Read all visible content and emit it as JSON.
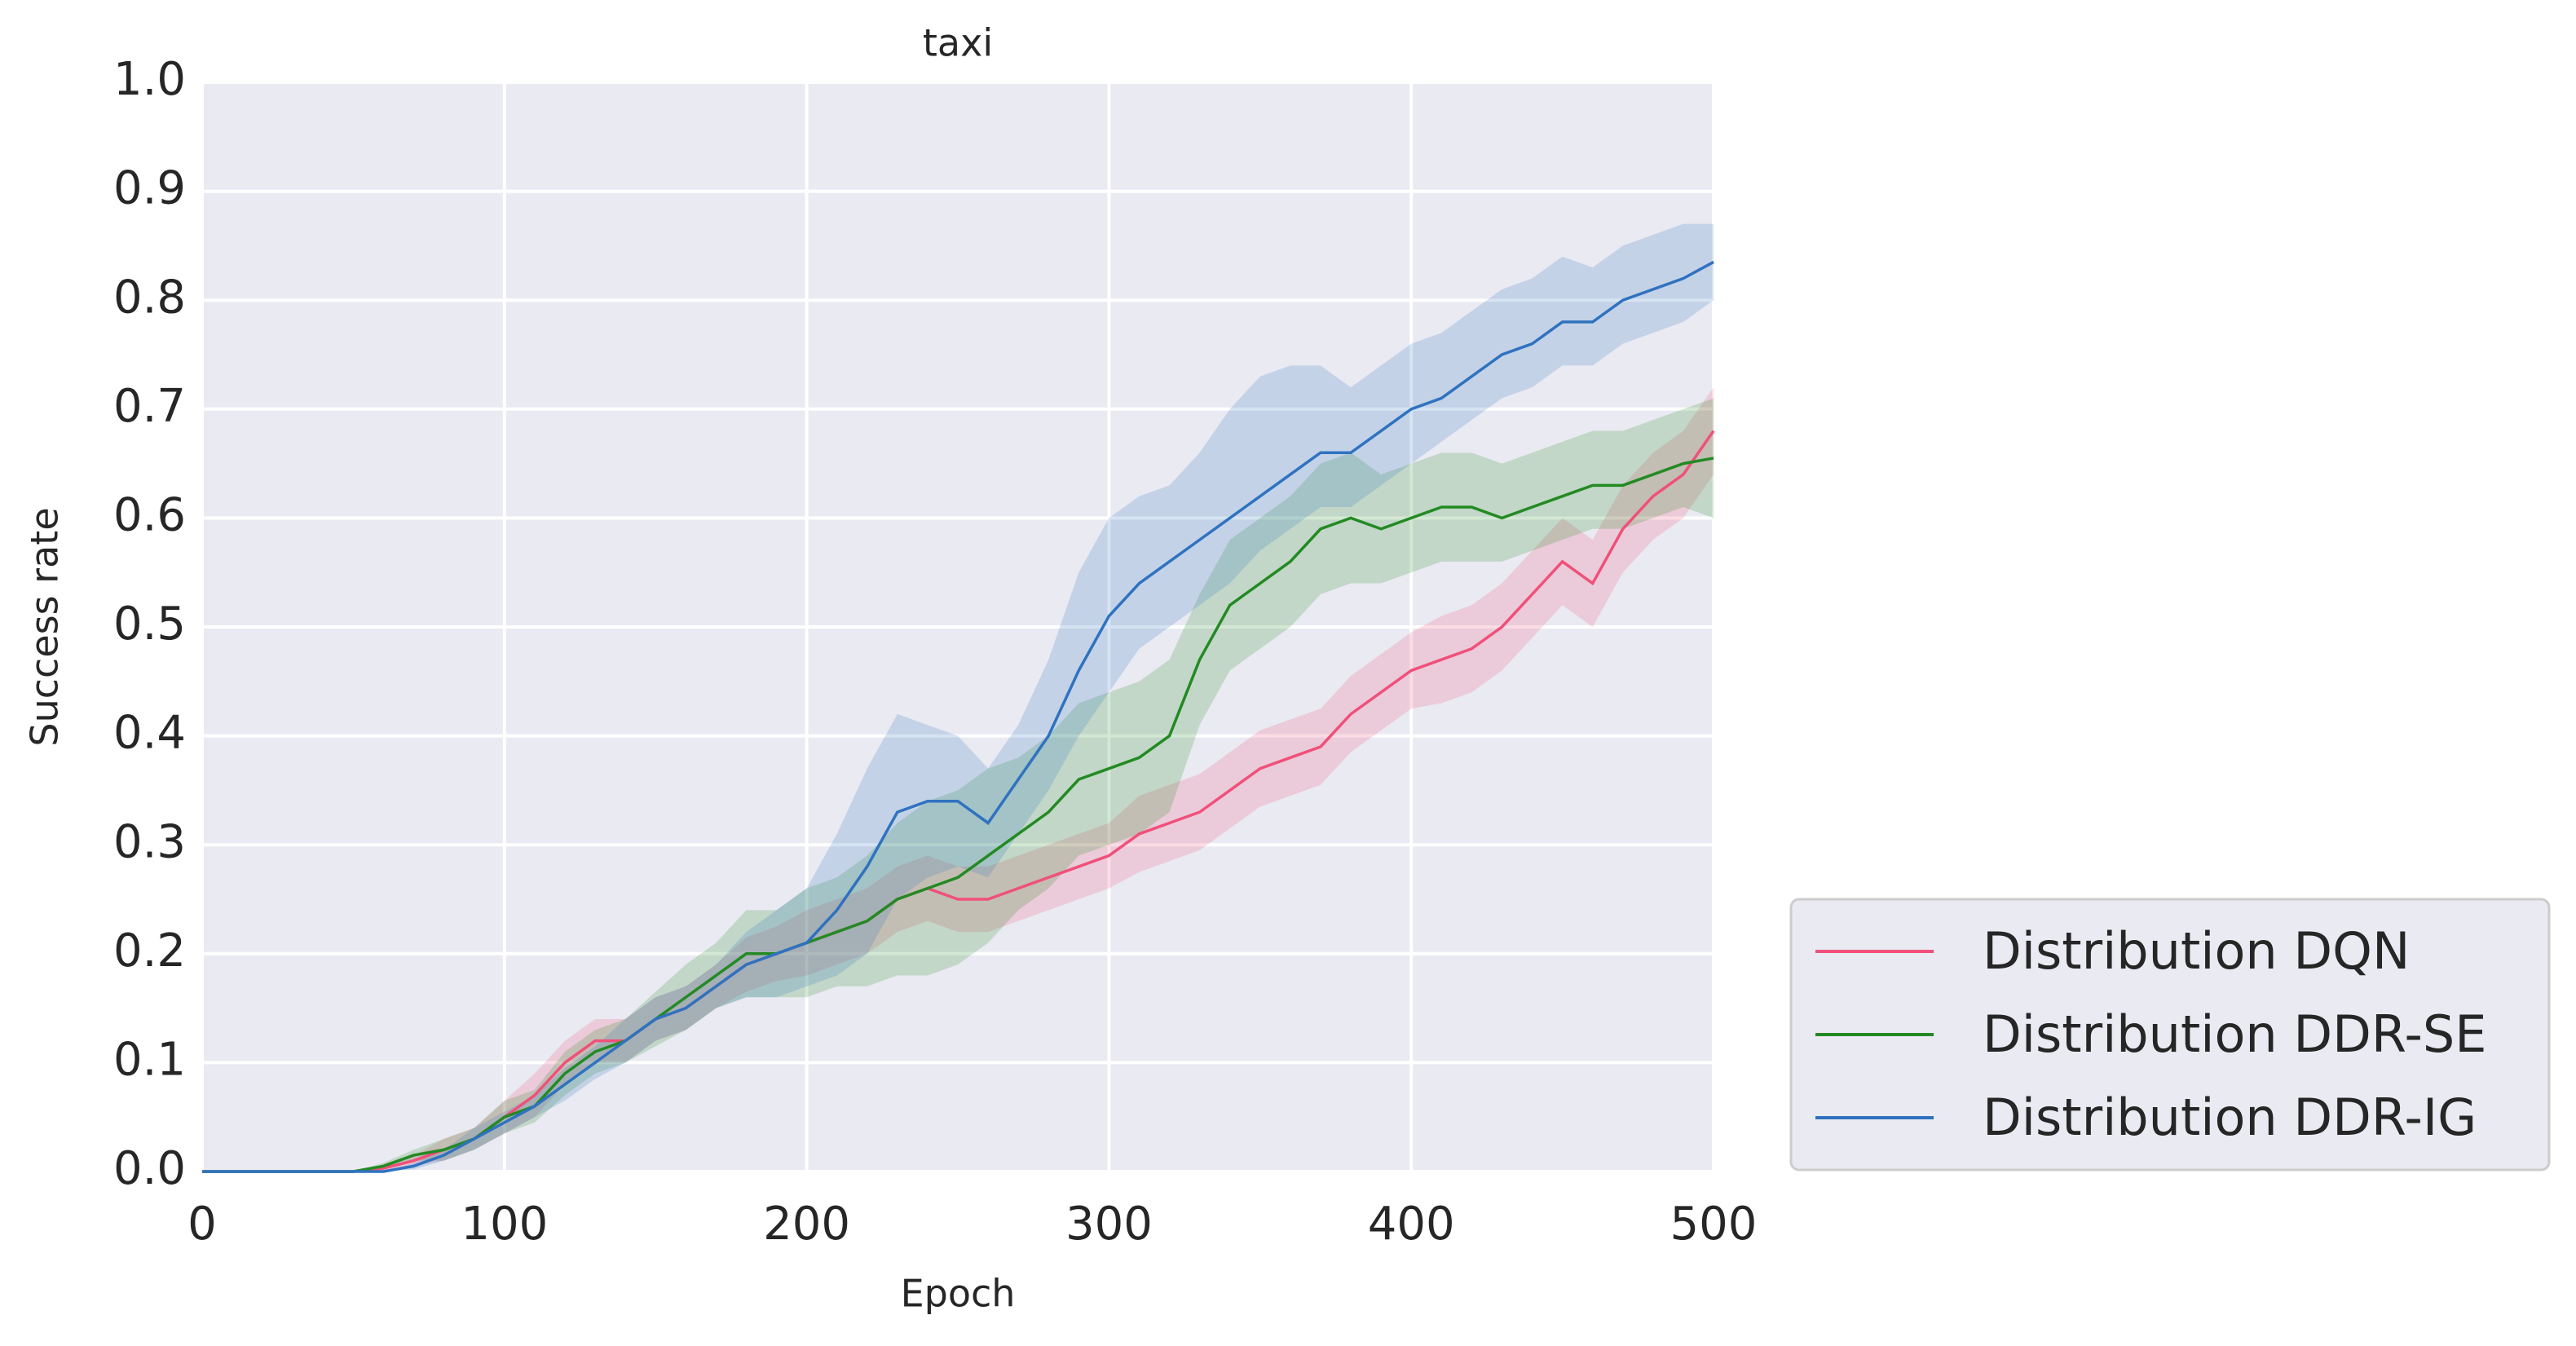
{
  "chart_data": {
    "type": "line",
    "title": "taxi",
    "x_label": "Epoch",
    "y_label": "Success rate",
    "x": [
      0,
      10,
      20,
      30,
      40,
      50,
      60,
      70,
      80,
      90,
      100,
      110,
      120,
      130,
      140,
      150,
      160,
      170,
      180,
      190,
      200,
      210,
      220,
      230,
      240,
      250,
      260,
      270,
      280,
      290,
      300,
      310,
      320,
      330,
      340,
      350,
      360,
      370,
      380,
      390,
      400,
      410,
      420,
      430,
      440,
      450,
      460,
      470,
      480,
      490,
      500
    ],
    "xlim": [
      0,
      500
    ],
    "xticks": [
      0,
      100,
      200,
      300,
      400,
      500
    ],
    "ylim": [
      0,
      1
    ],
    "yticks": [
      {
        "value": 0,
        "label": "0.0"
      },
      0.1,
      0.2,
      0.3,
      0.4,
      0.5,
      0.6,
      0.7,
      0.8,
      0.9,
      {
        "value": 1,
        "label": "1.0"
      }
    ],
    "grid": true,
    "legend_loc": "lower right",
    "series": [
      {
        "name": "Distribution DQN",
        "color": "#f0507a",
        "values": [
          0,
          0,
          0,
          0,
          0,
          0,
          0.003,
          0.01,
          0.02,
          0.03,
          0.05,
          0.07,
          0.1,
          0.12,
          0.12,
          0.14,
          0.15,
          0.17,
          0.19,
          0.2,
          0.21,
          0.22,
          0.23,
          0.25,
          0.26,
          0.25,
          0.25,
          0.26,
          0.27,
          0.28,
          0.29,
          0.31,
          0.32,
          0.33,
          0.35,
          0.37,
          0.38,
          0.39,
          0.42,
          0.44,
          0.46,
          0.47,
          0.48,
          0.5,
          0.53,
          0.56,
          0.54,
          0.59,
          0.62,
          0.64,
          0.68
        ],
        "lower": [
          0,
          0,
          0,
          0,
          0,
          0,
          0.001,
          0.005,
          0.01,
          0.02,
          0.035,
          0.05,
          0.08,
          0.1,
          0.1,
          0.12,
          0.13,
          0.15,
          0.165,
          0.175,
          0.18,
          0.19,
          0.2,
          0.22,
          0.23,
          0.22,
          0.22,
          0.23,
          0.24,
          0.25,
          0.26,
          0.275,
          0.285,
          0.295,
          0.315,
          0.335,
          0.345,
          0.355,
          0.385,
          0.405,
          0.425,
          0.43,
          0.44,
          0.46,
          0.49,
          0.52,
          0.5,
          0.55,
          0.58,
          0.6,
          0.64
        ],
        "upper": [
          0,
          0,
          0,
          0,
          0,
          0,
          0.005,
          0.015,
          0.03,
          0.04,
          0.065,
          0.09,
          0.12,
          0.14,
          0.14,
          0.16,
          0.17,
          0.19,
          0.215,
          0.225,
          0.24,
          0.25,
          0.26,
          0.28,
          0.29,
          0.28,
          0.28,
          0.29,
          0.3,
          0.31,
          0.32,
          0.345,
          0.355,
          0.365,
          0.385,
          0.405,
          0.415,
          0.425,
          0.455,
          0.475,
          0.495,
          0.51,
          0.52,
          0.54,
          0.57,
          0.6,
          0.58,
          0.63,
          0.66,
          0.68,
          0.72
        ]
      },
      {
        "name": "Distribution DDR-SE",
        "color": "#238a23",
        "values": [
          0,
          0,
          0,
          0,
          0,
          0,
          0.005,
          0.015,
          0.02,
          0.03,
          0.05,
          0.06,
          0.09,
          0.11,
          0.12,
          0.14,
          0.16,
          0.18,
          0.2,
          0.2,
          0.21,
          0.22,
          0.23,
          0.25,
          0.26,
          0.27,
          0.29,
          0.31,
          0.33,
          0.36,
          0.37,
          0.38,
          0.4,
          0.47,
          0.52,
          0.54,
          0.56,
          0.59,
          0.6,
          0.59,
          0.6,
          0.61,
          0.61,
          0.6,
          0.61,
          0.62,
          0.63,
          0.63,
          0.64,
          0.65,
          0.655
        ],
        "lower": [
          0,
          0,
          0,
          0,
          0,
          0,
          0.002,
          0.01,
          0.01,
          0.02,
          0.035,
          0.045,
          0.07,
          0.09,
          0.1,
          0.115,
          0.13,
          0.15,
          0.16,
          0.16,
          0.16,
          0.17,
          0.17,
          0.18,
          0.18,
          0.19,
          0.21,
          0.24,
          0.26,
          0.29,
          0.3,
          0.31,
          0.33,
          0.41,
          0.46,
          0.48,
          0.5,
          0.53,
          0.54,
          0.54,
          0.55,
          0.56,
          0.56,
          0.56,
          0.57,
          0.58,
          0.59,
          0.59,
          0.6,
          0.61,
          0.6
        ],
        "upper": [
          0,
          0,
          0,
          0,
          0,
          0,
          0.008,
          0.02,
          0.03,
          0.04,
          0.065,
          0.075,
          0.11,
          0.13,
          0.14,
          0.165,
          0.19,
          0.21,
          0.24,
          0.24,
          0.26,
          0.27,
          0.29,
          0.32,
          0.34,
          0.35,
          0.37,
          0.38,
          0.4,
          0.43,
          0.44,
          0.45,
          0.47,
          0.53,
          0.58,
          0.6,
          0.62,
          0.65,
          0.66,
          0.64,
          0.65,
          0.66,
          0.66,
          0.65,
          0.66,
          0.67,
          0.68,
          0.68,
          0.69,
          0.7,
          0.71
        ]
      },
      {
        "name": "Distribution DDR-IG",
        "color": "#2f72c0",
        "values": [
          0,
          0,
          0,
          0,
          0,
          0,
          0,
          0.005,
          0.015,
          0.03,
          0.045,
          0.06,
          0.08,
          0.1,
          0.12,
          0.14,
          0.15,
          0.17,
          0.19,
          0.2,
          0.21,
          0.24,
          0.28,
          0.33,
          0.34,
          0.34,
          0.32,
          0.36,
          0.4,
          0.46,
          0.51,
          0.54,
          0.56,
          0.58,
          0.6,
          0.62,
          0.64,
          0.66,
          0.66,
          0.68,
          0.7,
          0.71,
          0.73,
          0.75,
          0.76,
          0.78,
          0.78,
          0.8,
          0.81,
          0.82,
          0.835
        ],
        "lower": [
          0,
          0,
          0,
          0,
          0,
          0,
          0,
          0.002,
          0.01,
          0.02,
          0.035,
          0.05,
          0.065,
          0.085,
          0.1,
          0.12,
          0.13,
          0.15,
          0.16,
          0.16,
          0.17,
          0.18,
          0.2,
          0.25,
          0.27,
          0.28,
          0.27,
          0.31,
          0.35,
          0.4,
          0.44,
          0.48,
          0.5,
          0.52,
          0.54,
          0.57,
          0.59,
          0.61,
          0.61,
          0.63,
          0.65,
          0.67,
          0.69,
          0.71,
          0.72,
          0.74,
          0.74,
          0.76,
          0.77,
          0.78,
          0.8
        ],
        "upper": [
          0,
          0,
          0,
          0,
          0,
          0,
          0,
          0.008,
          0.02,
          0.04,
          0.055,
          0.07,
          0.095,
          0.115,
          0.14,
          0.16,
          0.17,
          0.19,
          0.22,
          0.24,
          0.26,
          0.31,
          0.37,
          0.42,
          0.41,
          0.4,
          0.37,
          0.41,
          0.47,
          0.55,
          0.6,
          0.62,
          0.63,
          0.66,
          0.7,
          0.73,
          0.74,
          0.74,
          0.72,
          0.74,
          0.76,
          0.77,
          0.79,
          0.81,
          0.82,
          0.84,
          0.83,
          0.85,
          0.86,
          0.87,
          0.87
        ]
      }
    ]
  }
}
